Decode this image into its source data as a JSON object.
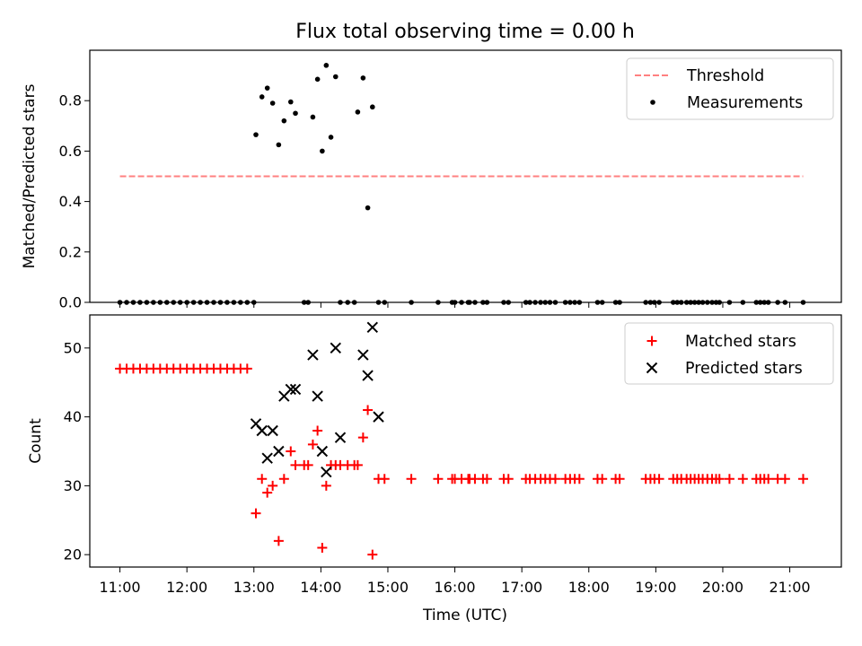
{
  "chart_data": [
    {
      "type": "scatter",
      "title": "Flux total observing time = 0.00 h",
      "ylabel": "Matched/Predicted stars",
      "ylim": [
        0,
        1.0
      ],
      "yticks": [
        "0.0",
        "0.2",
        "0.4",
        "0.6",
        "0.8"
      ],
      "xlim": [
        10.55,
        21.77
      ],
      "legend": {
        "placement": "top-right",
        "entries": [
          {
            "label": "Threshold",
            "marker": "dashed-line"
          },
          {
            "label": "Measurements",
            "marker": "dot"
          }
        ]
      },
      "threshold": {
        "name": "Threshold",
        "value": 0.5,
        "x_range": [
          11.0,
          21.2
        ],
        "color": "#ff8080",
        "style": "dashed"
      },
      "series": [
        {
          "name": "Measurements",
          "color": "#000000",
          "x": [
            11.0,
            11.1,
            11.2,
            11.3,
            11.4,
            11.5,
            11.6,
            11.7,
            11.8,
            11.9,
            12.0,
            12.1,
            12.2,
            12.3,
            12.4,
            12.5,
            12.6,
            12.7,
            12.8,
            12.9,
            13.0,
            13.03,
            13.12,
            13.2,
            13.28,
            13.37,
            13.45,
            13.55,
            13.62,
            13.75,
            13.81,
            13.88,
            13.95,
            14.02,
            14.08,
            14.15,
            14.22,
            14.29,
            14.4,
            14.5,
            14.55,
            14.63,
            14.7,
            14.77,
            14.86,
            14.95,
            15.35,
            15.75,
            15.96,
            16.0,
            16.1,
            16.2,
            16.22,
            16.3,
            16.42,
            16.48,
            16.73,
            16.8,
            17.06,
            17.12,
            17.2,
            17.28,
            17.35,
            17.42,
            17.5,
            17.65,
            17.72,
            17.79,
            17.86,
            18.13,
            18.2,
            18.4,
            18.46,
            18.85,
            18.92,
            18.98,
            19.05,
            19.26,
            19.32,
            19.38,
            19.46,
            19.52,
            19.58,
            19.64,
            19.7,
            19.77,
            19.84,
            19.9,
            19.95,
            20.1,
            20.3,
            20.5,
            20.56,
            20.62,
            20.68,
            20.82,
            20.93,
            21.2
          ],
          "y": [
            0,
            0,
            0,
            0,
            0,
            0,
            0,
            0,
            0,
            0,
            0,
            0,
            0,
            0,
            0,
            0,
            0,
            0,
            0,
            0,
            0,
            0.665,
            0.815,
            0.85,
            0.79,
            0.625,
            0.72,
            0.795,
            0.75,
            0,
            0,
            0.735,
            0.885,
            0.6,
            0.94,
            0.655,
            0.895,
            0,
            0,
            0,
            0.755,
            0.89,
            0.375,
            0.775,
            0,
            0,
            0,
            0,
            0,
            0,
            0,
            0,
            0,
            0,
            0,
            0,
            0,
            0,
            0,
            0,
            0,
            0,
            0,
            0,
            0,
            0,
            0,
            0,
            0,
            0,
            0,
            0,
            0,
            0,
            0,
            0,
            0,
            0,
            0,
            0,
            0,
            0,
            0,
            0,
            0,
            0,
            0,
            0,
            0,
            0,
            0,
            0,
            0,
            0,
            0,
            0,
            0,
            0
          ]
        }
      ]
    },
    {
      "type": "scatter",
      "xlabel": "Time (UTC)",
      "ylabel": "Count",
      "xlim": [
        10.55,
        21.77
      ],
      "ylim": [
        18.2,
        54.8
      ],
      "yticks": [
        "20",
        "30",
        "40",
        "50"
      ],
      "xticks": [
        {
          "v": 11,
          "label": "11:00"
        },
        {
          "v": 12,
          "label": "12:00"
        },
        {
          "v": 13,
          "label": "13:00"
        },
        {
          "v": 14,
          "label": "14:00"
        },
        {
          "v": 15,
          "label": "15:00"
        },
        {
          "v": 16,
          "label": "16:00"
        },
        {
          "v": 17,
          "label": "17:00"
        },
        {
          "v": 18,
          "label": "18:00"
        },
        {
          "v": 19,
          "label": "19:00"
        },
        {
          "v": 20,
          "label": "20:00"
        },
        {
          "v": 21,
          "label": "21:00"
        }
      ],
      "legend": {
        "placement": "top-right",
        "entries": [
          {
            "label": "Matched stars",
            "marker": "plus"
          },
          {
            "label": "Predicted stars",
            "marker": "x"
          }
        ]
      },
      "series": [
        {
          "name": "Matched stars",
          "marker": "plus",
          "color": "#ff0000",
          "x": [
            11.0,
            11.1,
            11.2,
            11.3,
            11.4,
            11.5,
            11.6,
            11.7,
            11.8,
            11.9,
            12.0,
            12.1,
            12.2,
            12.3,
            12.4,
            12.5,
            12.6,
            12.7,
            12.8,
            12.9,
            13.03,
            13.12,
            13.2,
            13.28,
            13.37,
            13.45,
            13.55,
            13.62,
            13.75,
            13.81,
            13.88,
            13.95,
            14.02,
            14.08,
            14.15,
            14.22,
            14.29,
            14.4,
            14.5,
            14.55,
            14.63,
            14.7,
            14.77,
            14.86,
            14.95,
            15.35,
            15.75,
            15.96,
            16.0,
            16.1,
            16.2,
            16.22,
            16.3,
            16.42,
            16.48,
            16.73,
            16.8,
            17.06,
            17.12,
            17.2,
            17.28,
            17.35,
            17.42,
            17.5,
            17.65,
            17.72,
            17.79,
            17.86,
            18.13,
            18.2,
            18.4,
            18.46,
            18.85,
            18.92,
            18.98,
            19.05,
            19.26,
            19.32,
            19.38,
            19.46,
            19.52,
            19.58,
            19.64,
            19.7,
            19.77,
            19.84,
            19.9,
            19.95,
            20.1,
            20.3,
            20.5,
            20.56,
            20.62,
            20.68,
            20.82,
            20.93,
            21.2
          ],
          "y": [
            47,
            47,
            47,
            47,
            47,
            47,
            47,
            47,
            47,
            47,
            47,
            47,
            47,
            47,
            47,
            47,
            47,
            47,
            47,
            47,
            26,
            31,
            29,
            30,
            22,
            31,
            35,
            33,
            33,
            33,
            36,
            38,
            21,
            30,
            33,
            33,
            33,
            33,
            33,
            33,
            37,
            41,
            20,
            31,
            31,
            31,
            31,
            31,
            31,
            31,
            31,
            31,
            31,
            31,
            31,
            31,
            31,
            31,
            31,
            31,
            31,
            31,
            31,
            31,
            31,
            31,
            31,
            31,
            31,
            31,
            31,
            31,
            31,
            31,
            31,
            31,
            31,
            31,
            31,
            31,
            31,
            31,
            31,
            31,
            31,
            31,
            31,
            31,
            31,
            31,
            31,
            31,
            31,
            31,
            31,
            31,
            31
          ]
        },
        {
          "name": "Predicted stars",
          "marker": "x",
          "color": "#000000",
          "x": [
            13.03,
            13.12,
            13.2,
            13.28,
            13.37,
            13.45,
            13.55,
            13.62,
            13.88,
            13.95,
            14.02,
            14.08,
            14.22,
            14.29,
            14.63,
            14.7,
            14.77,
            14.86
          ],
          "y": [
            39,
            38,
            34,
            38,
            35,
            43,
            44,
            44,
            49,
            43,
            35,
            32,
            50,
            37,
            49,
            46,
            53,
            40
          ]
        }
      ]
    }
  ]
}
